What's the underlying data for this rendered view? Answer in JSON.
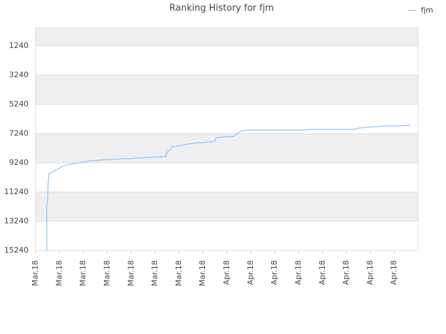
{
  "chart_data": {
    "type": "line",
    "title": "Ranking History for fjm",
    "xlim": [
      0,
      16
    ],
    "xticks": [
      {
        "value": 0,
        "label": "Mar.18"
      },
      {
        "value": 1,
        "label": "Mar.18"
      },
      {
        "value": 2,
        "label": "Mar.18"
      },
      {
        "value": 3,
        "label": "Mar.18"
      },
      {
        "value": 4,
        "label": "Mar.18"
      },
      {
        "value": 5,
        "label": "Mar.18"
      },
      {
        "value": 6,
        "label": "Mar.18"
      },
      {
        "value": 7,
        "label": "Mar.18"
      },
      {
        "value": 8,
        "label": "Apr.18"
      },
      {
        "value": 9,
        "label": "Apr.18"
      },
      {
        "value": 10,
        "label": "Apr.18"
      },
      {
        "value": 11,
        "label": "Apr.18"
      },
      {
        "value": 12,
        "label": "Apr.18"
      },
      {
        "value": 13,
        "label": "Apr.18"
      },
      {
        "value": 14,
        "label": "Apr.18"
      },
      {
        "value": 15,
        "label": "Apr.18"
      }
    ],
    "ylim": [
      15240,
      0
    ],
    "yticks": [
      1240,
      3240,
      5240,
      7240,
      9240,
      11240,
      13240,
      15240
    ],
    "grid": true,
    "legend": "top-right",
    "series": [
      {
        "name": "fjm",
        "color": "#90c4f0",
        "x": [
          0.47,
          0.47,
          0.5,
          0.53,
          0.55,
          1.14,
          1.28,
          2.31,
          2.74,
          3.77,
          4.35,
          4.79,
          5.46,
          5.49,
          5.64,
          5.72,
          6.1,
          6.54,
          7.27,
          7.5,
          7.56,
          7.8,
          8.29,
          8.5,
          8.58,
          8.88,
          9.31,
          11.21,
          11.36,
          13.26,
          13.55,
          13.84,
          14.28,
          14.57,
          15.15,
          15.68
        ],
        "values": [
          15240,
          12002,
          11907,
          10573,
          10002,
          9478,
          9383,
          9097,
          9050,
          8954,
          8907,
          8859,
          8812,
          8526,
          8335,
          8145,
          8050,
          7907,
          7812,
          7764,
          7526,
          7478,
          7431,
          7145,
          7050,
          7002,
          7002,
          7002,
          6954,
          6954,
          6859,
          6812,
          6764,
          6716,
          6716,
          6669
        ]
      }
    ]
  }
}
